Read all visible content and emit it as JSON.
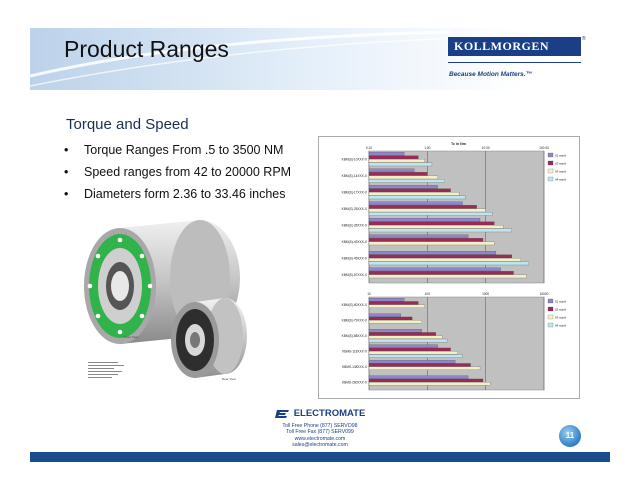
{
  "header": {
    "title": "Product Ranges",
    "logo": "KOLLMORGEN",
    "logo_mark": "®",
    "tagline": "Because Motion Matters.™"
  },
  "section": {
    "subtitle": "Torque and Speed",
    "bullets": [
      "Torque Ranges From .5 to 3500 NM",
      "Speed ranges from 42 to 20000 RPM",
      "Diameters form 2.36 to 33.46 inches"
    ]
  },
  "chart_data": [
    {
      "type": "bar",
      "orientation": "horizontal",
      "title": "Tc in Nm",
      "scale": "log",
      "xlim": [
        0.1,
        100
      ],
      "ticks": [
        "0.10",
        "1.00",
        "10.00",
        "100.00"
      ],
      "legend": [
        "01 stack",
        "02 stack",
        "03 stack",
        "04 stack"
      ],
      "categories": [
        "KBM(S)-10XXX-X",
        "KBM(S)-14XXX-X",
        "KBM(S)-17XXX-X",
        "KBM(S)-25XXX-X",
        "KBM(S)-35XXX-X",
        "KBM(S)-43XXX-X",
        "KBM(S)-45XXX-X",
        "KBM(S)-57XXX-X"
      ],
      "series": [
        {
          "name": "01 stack",
          "values": [
            0.4,
            0.6,
            1.5,
            4,
            8,
            5,
            15,
            18
          ]
        },
        {
          "name": "02 stack",
          "values": [
            0.7,
            1.0,
            2.5,
            7,
            14,
            9,
            28,
            30
          ]
        },
        {
          "name": "03 stack",
          "values": [
            0.9,
            1.5,
            3.5,
            10,
            20,
            14,
            40,
            50
          ]
        },
        {
          "name": "04 stack",
          "values": [
            1.2,
            2.0,
            4.5,
            13,
            28,
            0,
            55,
            0
          ]
        }
      ]
    },
    {
      "type": "bar",
      "orientation": "horizontal",
      "scale": "log",
      "xlim": [
        10,
        10000
      ],
      "ticks": [
        "10",
        "100",
        "1000",
        "10000"
      ],
      "legend": [
        "01 stack",
        "02 stack",
        "03 stack",
        "04 stack"
      ],
      "categories": [
        "KBM(S)-60XXX-X",
        "KBM(S)-79XXX-X",
        "KBM(S)-88XXX-X",
        "KBMS-118XXX-X",
        "KBMS-148XXX-X",
        "KBMS-260XXX-X"
      ],
      "series": [
        {
          "name": "01 stack",
          "values": [
            40,
            35,
            80,
            150,
            300,
            500
          ]
        },
        {
          "name": "02 stack",
          "values": [
            70,
            55,
            140,
            250,
            550,
            900
          ]
        },
        {
          "name": "03 stack",
          "values": [
            90,
            80,
            180,
            330,
            800,
            1200
          ]
        },
        {
          "name": "04 stack",
          "values": [
            0,
            0,
            220,
            400,
            0,
            0
          ]
        }
      ]
    }
  ],
  "colors": {
    "series": [
      "#8e86c8",
      "#9a2b57",
      "#f3f0c8",
      "#bfe6ef"
    ],
    "plot_bg": "#c0c0c0",
    "brand": "#1a3f86"
  },
  "diagram_labels": {
    "front_view": "Front View",
    "rear_view": "Rear View"
  },
  "footer": {
    "brand": "ELECTROMATE",
    "phone": "Toll Free Phone (877) SERVO98",
    "fax": "Toll Free Fax (877) SERV099",
    "web": "www.electromate.com",
    "email": "sales@electromate.com",
    "page": "11"
  }
}
